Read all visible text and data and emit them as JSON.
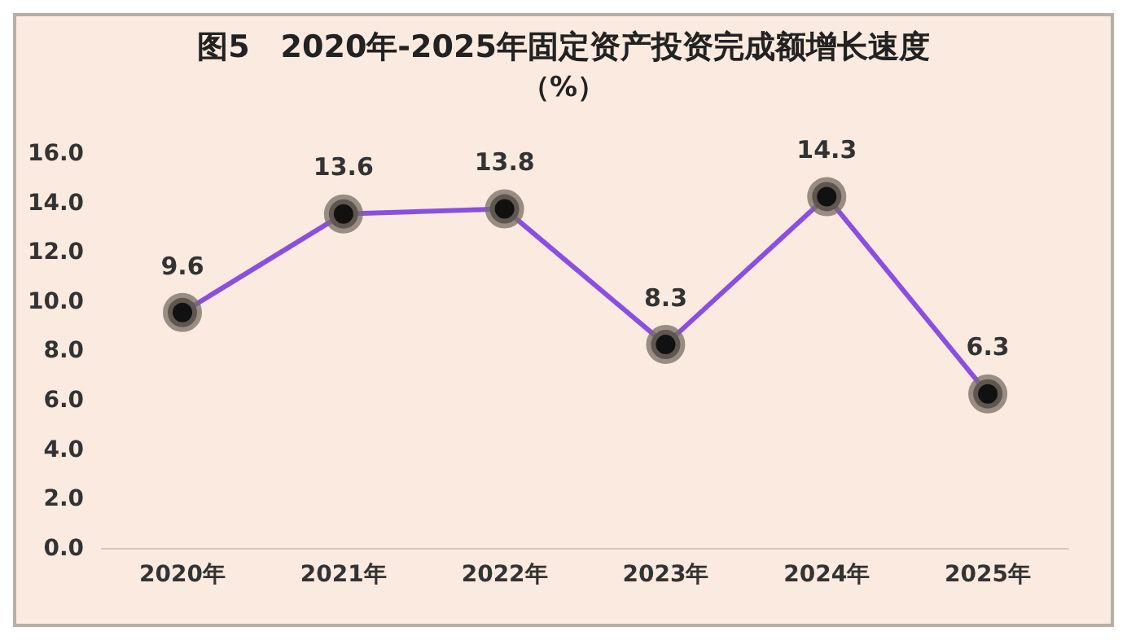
{
  "chart_data": {
    "type": "line",
    "title": "图5　2020年-2025年固定资产投资完成额增长速度",
    "subtitle": "（%）",
    "categories": [
      "2020年",
      "2021年",
      "2022年",
      "2023年",
      "2024年",
      "2025年"
    ],
    "series": [
      {
        "color": "#8a4fe0",
        "values": [
          9.6,
          13.6,
          13.8,
          8.3,
          14.3,
          6.3
        ]
      }
    ],
    "ylim": [
      0,
      16
    ],
    "yticks": [
      {
        "value": 0,
        "label": "0.0"
      },
      {
        "value": 2,
        "label": "2.0"
      },
      {
        "value": 4,
        "label": "4.0"
      },
      {
        "value": 6,
        "label": "6.0"
      },
      {
        "value": 8,
        "label": "8.0"
      },
      {
        "value": 10,
        "label": "10.0"
      },
      {
        "value": 12,
        "label": "12.0"
      },
      {
        "value": 14,
        "label": "14.0"
      },
      {
        "value": 16,
        "label": "16.0"
      }
    ],
    "grid": false,
    "legend": false,
    "marker": "circle",
    "line_style": "solid",
    "data_labels": true
  }
}
